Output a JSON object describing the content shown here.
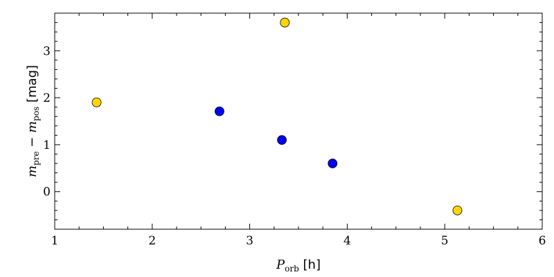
{
  "chart_data": {
    "type": "scatter",
    "title": "",
    "xlabel": {
      "symbol": "P",
      "subscript": "orb",
      "unit": " [h]"
    },
    "ylabel": {
      "m1": "m",
      "sub1": "pre",
      "minus": " − ",
      "m2": "m",
      "sub2": "pos",
      "unit": " [mag]"
    },
    "xlim": [
      1,
      6
    ],
    "ylim": [
      -0.8,
      3.8
    ],
    "xticks": [
      1,
      2,
      3,
      4,
      5,
      6
    ],
    "yticks": [
      0,
      1,
      2,
      3
    ],
    "grid": false,
    "series": [
      {
        "color": "#FFD700",
        "points": [
          {
            "x": 1.43,
            "y": 1.9
          },
          {
            "x": 3.36,
            "y": 3.6
          },
          {
            "x": 5.13,
            "y": -0.4
          }
        ]
      },
      {
        "color": "#0000EE",
        "points": [
          {
            "x": 2.69,
            "y": 1.71
          },
          {
            "x": 3.33,
            "y": 1.1
          },
          {
            "x": 3.85,
            "y": 0.6
          }
        ]
      }
    ]
  }
}
